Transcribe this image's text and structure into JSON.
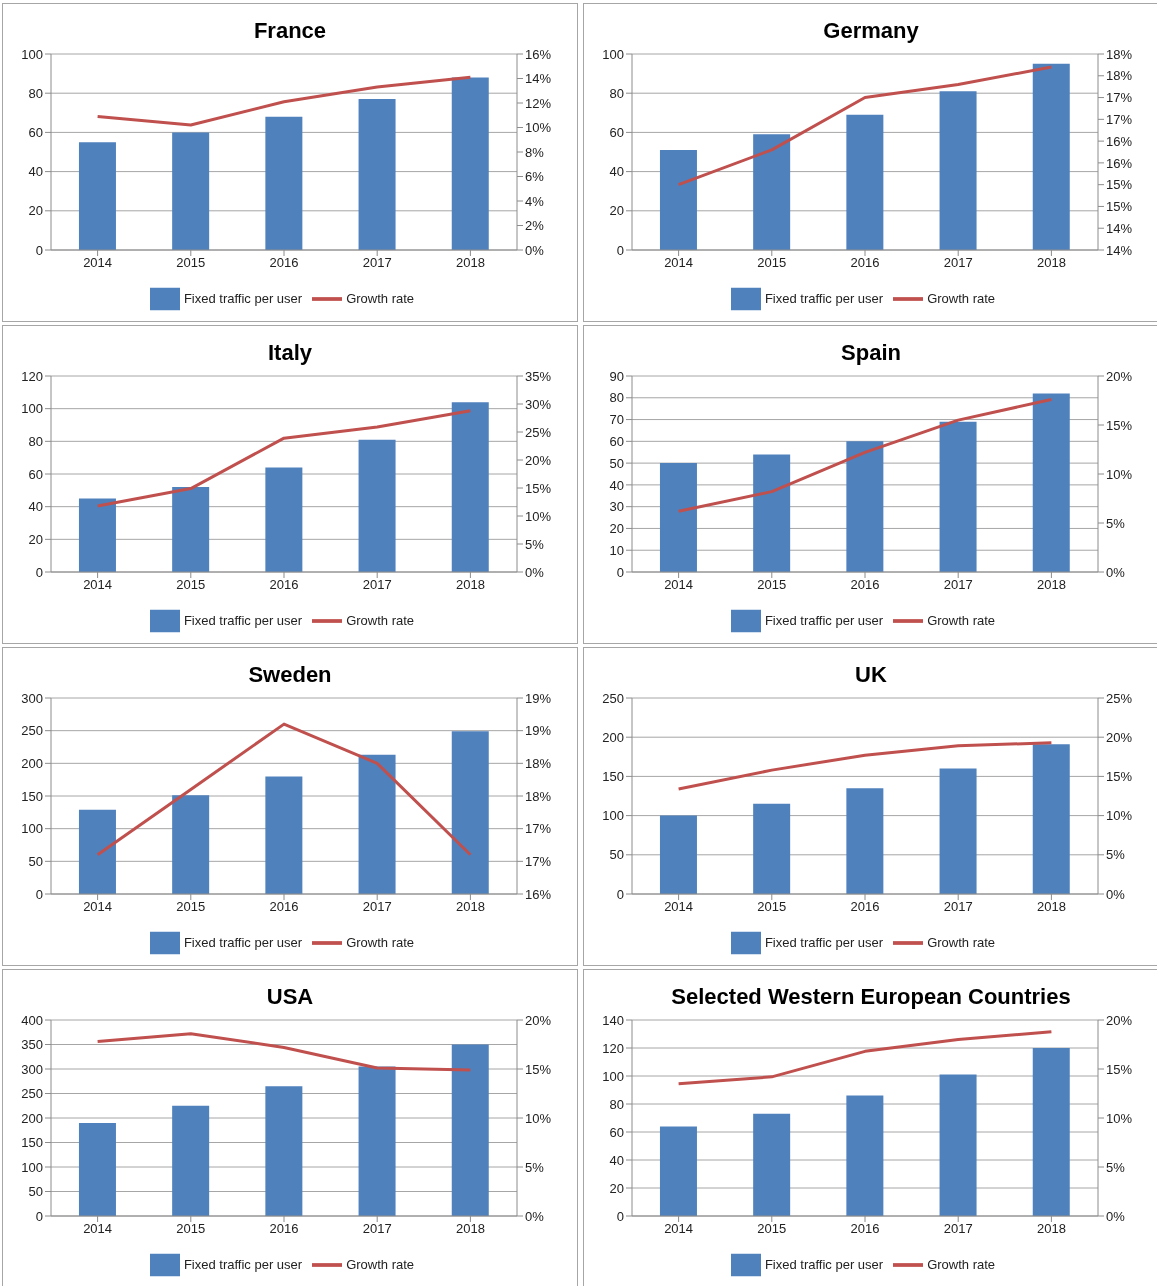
{
  "chart_data": [
    {
      "type": "bar",
      "title": "France",
      "categories": [
        "2014",
        "2015",
        "2016",
        "2017",
        "2018"
      ],
      "series": [
        {
          "name": "Fixed traffic per user",
          "color": "#4f81bd",
          "values": [
            55,
            60,
            68,
            77,
            88
          ]
        },
        {
          "name": "Growth rate",
          "type": "line",
          "axis": "y2",
          "color": "#c0504d",
          "values": [
            10.9,
            10.2,
            12.1,
            13.3,
            14.1
          ]
        }
      ],
      "ylim": [
        0,
        100
      ],
      "yticks": [
        0,
        20,
        40,
        60,
        80,
        100
      ],
      "y2lim": [
        0,
        16
      ],
      "y2ticks": [
        {
          "value": 0,
          "label": "0%"
        },
        {
          "value": 2,
          "label": "2%"
        },
        {
          "value": 4,
          "label": "4%"
        },
        {
          "value": 6,
          "label": "6%"
        },
        {
          "value": 8,
          "label": "8%"
        },
        {
          "value": 10,
          "label": "10%"
        },
        {
          "value": 12,
          "label": "12%"
        },
        {
          "value": 14,
          "label": "14%"
        },
        {
          "value": 16,
          "label": "16%"
        }
      ],
      "grid": "y",
      "legend": "bottom"
    },
    {
      "type": "bar",
      "title": "Germany",
      "categories": [
        "2014",
        "2015",
        "2016",
        "2017",
        "2018"
      ],
      "series": [
        {
          "name": "Fixed traffic per user",
          "color": "#4f81bd",
          "values": [
            51,
            59,
            69,
            81,
            95
          ]
        },
        {
          "name": "Growth rate",
          "type": "line",
          "axis": "y2",
          "color": "#c0504d",
          "values": [
            15.0,
            15.8,
            17.0,
            17.3,
            17.7
          ]
        }
      ],
      "ylim": [
        0,
        100
      ],
      "yticks": [
        0,
        20,
        40,
        60,
        80,
        100
      ],
      "y2lim": [
        13.5,
        18
      ],
      "y2ticks": [
        {
          "value": 13.5,
          "label": "14%"
        },
        {
          "value": 14,
          "label": "14%"
        },
        {
          "value": 14.5,
          "label": "15%"
        },
        {
          "value": 15,
          "label": "15%"
        },
        {
          "value": 15.5,
          "label": "16%"
        },
        {
          "value": 16,
          "label": "16%"
        },
        {
          "value": 16.5,
          "label": "17%"
        },
        {
          "value": 17,
          "label": "17%"
        },
        {
          "value": 17.5,
          "label": "18%"
        },
        {
          "value": 18,
          "label": "18%"
        }
      ],
      "grid": "y",
      "legend": "bottom"
    },
    {
      "type": "bar",
      "title": "Italy",
      "categories": [
        "2014",
        "2015",
        "2016",
        "2017",
        "2018"
      ],
      "series": [
        {
          "name": "Fixed traffic per user",
          "color": "#4f81bd",
          "values": [
            45,
            52,
            64,
            81,
            104
          ]
        },
        {
          "name": "Growth rate",
          "type": "line",
          "axis": "y2",
          "color": "#c0504d",
          "values": [
            11.8,
            14.9,
            23.9,
            25.9,
            28.8
          ]
        }
      ],
      "ylim": [
        0,
        120
      ],
      "yticks": [
        0,
        20,
        40,
        60,
        80,
        100,
        120
      ],
      "y2lim": [
        0,
        35
      ],
      "y2ticks": [
        {
          "value": 0,
          "label": "0%"
        },
        {
          "value": 5,
          "label": "5%"
        },
        {
          "value": 10,
          "label": "10%"
        },
        {
          "value": 15,
          "label": "15%"
        },
        {
          "value": 20,
          "label": "20%"
        },
        {
          "value": 25,
          "label": "25%"
        },
        {
          "value": 30,
          "label": "30%"
        },
        {
          "value": 35,
          "label": "35%"
        }
      ],
      "grid": "y",
      "legend": "bottom"
    },
    {
      "type": "bar",
      "title": "Spain",
      "categories": [
        "2014",
        "2015",
        "2016",
        "2017",
        "2018"
      ],
      "series": [
        {
          "name": "Fixed traffic per user",
          "color": "#4f81bd",
          "values": [
            50,
            54,
            60,
            69,
            82
          ]
        },
        {
          "name": "Growth rate",
          "type": "line",
          "axis": "y2",
          "color": "#c0504d",
          "values": [
            6.2,
            8.2,
            12.2,
            15.5,
            17.6
          ]
        }
      ],
      "ylim": [
        0,
        90
      ],
      "yticks": [
        0,
        10,
        20,
        30,
        40,
        50,
        60,
        70,
        80,
        90
      ],
      "y2lim": [
        0,
        20
      ],
      "y2ticks": [
        {
          "value": 0,
          "label": "0%"
        },
        {
          "value": 5,
          "label": "5%"
        },
        {
          "value": 10,
          "label": "10%"
        },
        {
          "value": 15,
          "label": "15%"
        },
        {
          "value": 20,
          "label": "20%"
        }
      ],
      "grid": "y",
      "legend": "bottom"
    },
    {
      "type": "bar",
      "title": "Sweden",
      "categories": [
        "2014",
        "2015",
        "2016",
        "2017",
        "2018"
      ],
      "series": [
        {
          "name": "Fixed traffic per user",
          "color": "#4f81bd",
          "values": [
            129,
            151,
            180,
            213,
            249
          ]
        },
        {
          "name": "Growth rate",
          "type": "line",
          "axis": "y2",
          "color": "#c0504d",
          "values": [
            16.6,
            17.6,
            18.6,
            18.0,
            16.6
          ]
        }
      ],
      "ylim": [
        0,
        300
      ],
      "yticks": [
        0,
        50,
        100,
        150,
        200,
        250,
        300
      ],
      "y2lim": [
        16,
        19
      ],
      "y2ticks": [
        {
          "value": 16,
          "label": "16%"
        },
        {
          "value": 16.5,
          "label": "17%"
        },
        {
          "value": 17,
          "label": "17%"
        },
        {
          "value": 17.5,
          "label": "18%"
        },
        {
          "value": 18,
          "label": "18%"
        },
        {
          "value": 18.5,
          "label": "19%"
        },
        {
          "value": 19,
          "label": "19%"
        }
      ],
      "grid": "y",
      "legend": "bottom"
    },
    {
      "type": "bar",
      "title": "UK",
      "categories": [
        "2014",
        "2015",
        "2016",
        "2017",
        "2018"
      ],
      "series": [
        {
          "name": "Fixed traffic per user",
          "color": "#4f81bd",
          "values": [
            100,
            115,
            135,
            160,
            191
          ]
        },
        {
          "name": "Growth rate",
          "type": "line",
          "axis": "y2",
          "color": "#c0504d",
          "values": [
            13.4,
            15.8,
            17.7,
            18.9,
            19.3
          ]
        }
      ],
      "ylim": [
        0,
        250
      ],
      "yticks": [
        0,
        50,
        100,
        150,
        200,
        250
      ],
      "y2lim": [
        0,
        25
      ],
      "y2ticks": [
        {
          "value": 0,
          "label": "0%"
        },
        {
          "value": 5,
          "label": "5%"
        },
        {
          "value": 10,
          "label": "10%"
        },
        {
          "value": 15,
          "label": "15%"
        },
        {
          "value": 20,
          "label": "20%"
        },
        {
          "value": 25,
          "label": "25%"
        }
      ],
      "grid": "y",
      "legend": "bottom"
    },
    {
      "type": "bar",
      "title": "USA",
      "categories": [
        "2014",
        "2015",
        "2016",
        "2017",
        "2018"
      ],
      "series": [
        {
          "name": "Fixed traffic per user",
          "color": "#4f81bd",
          "values": [
            190,
            225,
            265,
            305,
            350
          ]
        },
        {
          "name": "Growth rate",
          "type": "line",
          "axis": "y2",
          "color": "#c0504d",
          "values": [
            17.8,
            18.6,
            17.2,
            15.1,
            14.9
          ]
        }
      ],
      "ylim": [
        0,
        400
      ],
      "yticks": [
        0,
        50,
        100,
        150,
        200,
        250,
        300,
        350,
        400
      ],
      "y2lim": [
        0,
        20
      ],
      "y2ticks": [
        {
          "value": 0,
          "label": "0%"
        },
        {
          "value": 5,
          "label": "5%"
        },
        {
          "value": 10,
          "label": "10%"
        },
        {
          "value": 15,
          "label": "15%"
        },
        {
          "value": 20,
          "label": "20%"
        }
      ],
      "grid": "y",
      "legend": "bottom"
    },
    {
      "type": "bar",
      "title": "Selected Western European Countries",
      "categories": [
        "2014",
        "2015",
        "2016",
        "2017",
        "2018"
      ],
      "series": [
        {
          "name": "Fixed traffic per user",
          "color": "#4f81bd",
          "values": [
            64,
            73,
            86,
            101,
            120
          ]
        },
        {
          "name": "Growth rate",
          "type": "line",
          "axis": "y2",
          "color": "#c0504d",
          "values": [
            13.5,
            14.2,
            16.8,
            18.0,
            18.8
          ]
        }
      ],
      "ylim": [
        0,
        140
      ],
      "yticks": [
        0,
        20,
        40,
        60,
        80,
        100,
        120,
        140
      ],
      "y2lim": [
        0,
        20
      ],
      "y2ticks": [
        {
          "value": 0,
          "label": "0%"
        },
        {
          "value": 5,
          "label": "5%"
        },
        {
          "value": 10,
          "label": "10%"
        },
        {
          "value": 15,
          "label": "15%"
        },
        {
          "value": 20,
          "label": "20%"
        }
      ],
      "grid": "y",
      "legend": "bottom"
    }
  ]
}
